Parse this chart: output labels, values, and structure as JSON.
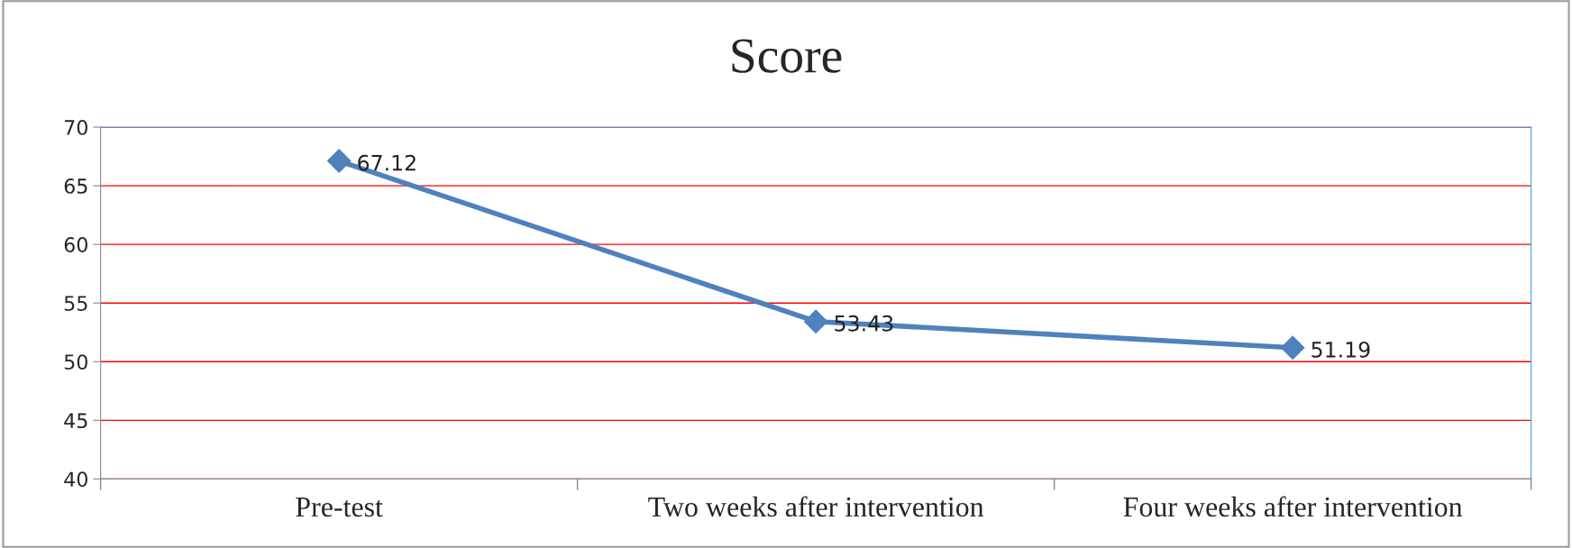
{
  "chart_data": {
    "type": "line",
    "title": "Score",
    "categories": [
      "Pre-test",
      "Two weeks after intervention",
      "Four weeks after intervention"
    ],
    "series": [
      {
        "color": "#4f81bd",
        "values": [
          67.12,
          53.43,
          51.19
        ]
      }
    ],
    "ylim": [
      40,
      70
    ],
    "yticks": [
      40,
      45,
      50,
      55,
      60,
      65,
      70
    ],
    "grid": "y",
    "marker": "diamond",
    "line_style": "solid",
    "data_labels": true
  }
}
